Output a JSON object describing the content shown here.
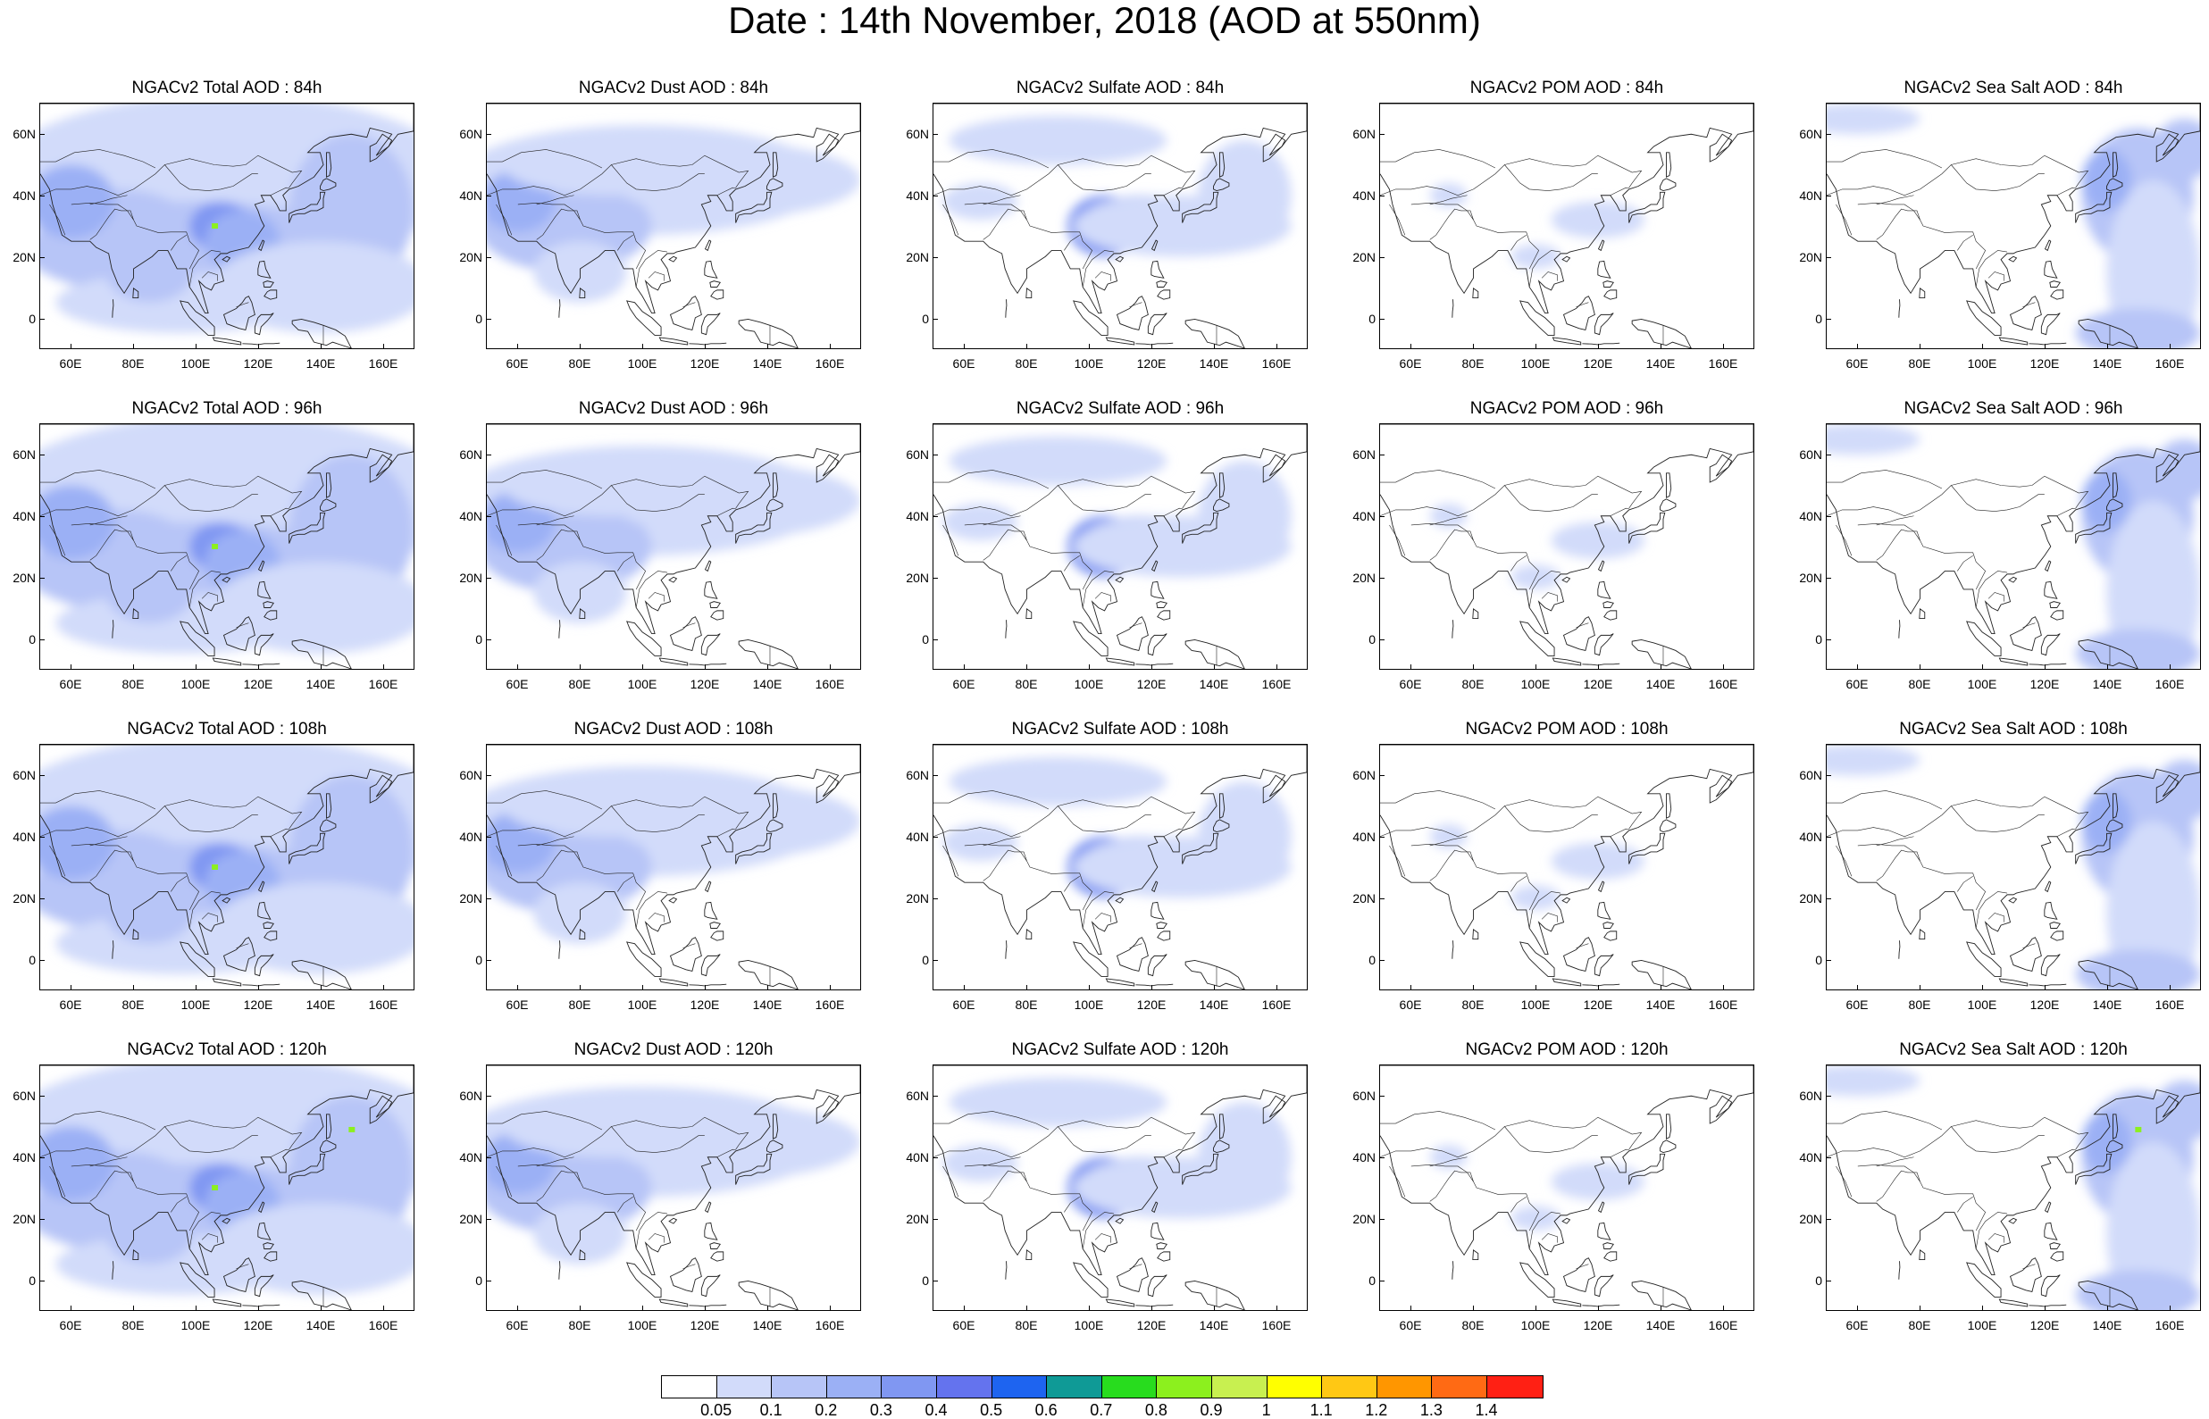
{
  "figure": {
    "title": "Date : 14th November, 2018 (AOD at 550nm)"
  },
  "panels": [
    {
      "title": "NGACv2 Total AOD : 84h",
      "species": "total",
      "hour": 84
    },
    {
      "title": "NGACv2 Dust AOD : 84h",
      "species": "dust",
      "hour": 84
    },
    {
      "title": "NGACv2 Sulfate AOD : 84h",
      "species": "sulfate",
      "hour": 84
    },
    {
      "title": "NGACv2 POM AOD : 84h",
      "species": "pom",
      "hour": 84
    },
    {
      "title": "NGACv2 Sea Salt AOD : 84h",
      "species": "seasalt",
      "hour": 84
    },
    {
      "title": "NGACv2 Total AOD : 96h",
      "species": "total",
      "hour": 96
    },
    {
      "title": "NGACv2 Dust AOD : 96h",
      "species": "dust",
      "hour": 96
    },
    {
      "title": "NGACv2 Sulfate AOD : 96h",
      "species": "sulfate",
      "hour": 96
    },
    {
      "title": "NGACv2 POM AOD : 96h",
      "species": "pom",
      "hour": 96
    },
    {
      "title": "NGACv2 Sea Salt AOD : 96h",
      "species": "seasalt",
      "hour": 96
    },
    {
      "title": "NGACv2 Total AOD : 108h",
      "species": "total",
      "hour": 108
    },
    {
      "title": "NGACv2 Dust AOD : 108h",
      "species": "dust",
      "hour": 108
    },
    {
      "title": "NGACv2 Sulfate AOD : 108h",
      "species": "sulfate",
      "hour": 108
    },
    {
      "title": "NGACv2 POM AOD : 108h",
      "species": "pom",
      "hour": 108
    },
    {
      "title": "NGACv2 Sea Salt AOD : 108h",
      "species": "seasalt",
      "hour": 108
    },
    {
      "title": "NGACv2 Total AOD : 120h",
      "species": "total",
      "hour": 120
    },
    {
      "title": "NGACv2 Dust AOD : 120h",
      "species": "dust",
      "hour": 120
    },
    {
      "title": "NGACv2 Sulfate AOD : 120h",
      "species": "sulfate",
      "hour": 120
    },
    {
      "title": "NGACv2 POM AOD : 120h",
      "species": "pom",
      "hour": 120
    },
    {
      "title": "NGACv2 Sea Salt  AOD : 120h",
      "species": "seasalt",
      "hour": 120
    }
  ],
  "axes": {
    "lon_range": [
      50,
      170
    ],
    "lat_range": [
      -10,
      70
    ],
    "lon_ticks": [
      60,
      80,
      100,
      120,
      140,
      160
    ],
    "lon_labels": [
      "60E",
      "80E",
      "100E",
      "120E",
      "140E",
      "160E"
    ],
    "lat_ticks": [
      60,
      40,
      20,
      0
    ],
    "lat_labels": [
      "60N",
      "40N",
      "20N",
      "0"
    ]
  },
  "colorbar": {
    "labels": [
      "0.05",
      "0.1",
      "0.2",
      "0.3",
      "0.4",
      "0.5",
      "0.6",
      "0.7",
      "0.8",
      "0.9",
      "1",
      "1.1",
      "1.2",
      "1.3",
      "1.4"
    ],
    "colors": [
      "#ffffff",
      "#d2dbfa",
      "#b7c5f7",
      "#9bb0f5",
      "#8097f2",
      "#6473ee",
      "#1e64f0",
      "#0f9a96",
      "#28dc1e",
      "#8cf01e",
      "#c8f050",
      "#ffff00",
      "#ffc814",
      "#ff9600",
      "#ff6a14",
      "#ff2014"
    ]
  }
}
